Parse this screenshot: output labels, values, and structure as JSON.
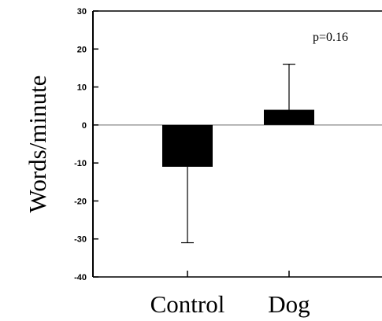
{
  "chart_data": {
    "type": "bar",
    "title": "",
    "xlabel": "",
    "ylabel": "Words/minute",
    "categories": [
      "Control",
      "Dog"
    ],
    "values": [
      -11,
      4
    ],
    "error_upper": [
      0,
      16
    ],
    "error_lower": [
      -31,
      0
    ],
    "ylim": [
      -40,
      30
    ],
    "yticks": [
      "30",
      "20",
      "10",
      "0",
      "-10",
      "-20",
      "-30",
      "-40"
    ],
    "annotation": "p=0.16",
    "grid": false,
    "bar_color": "#000000"
  }
}
